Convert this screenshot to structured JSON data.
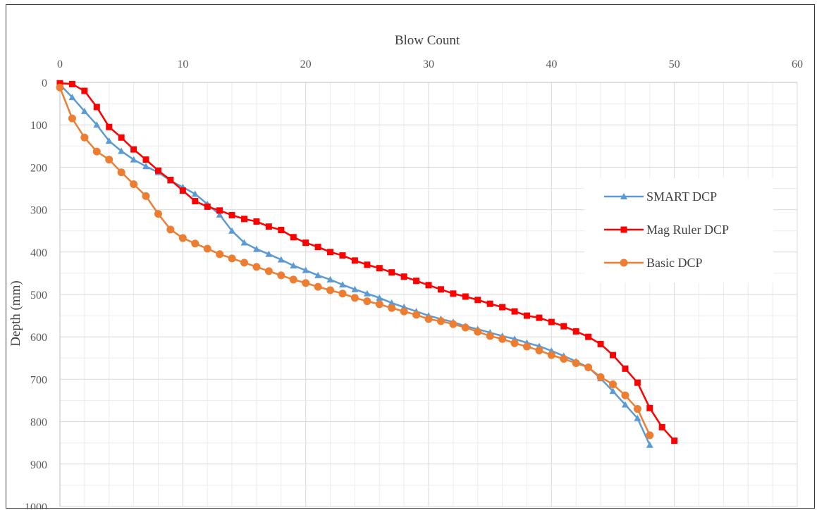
{
  "chart_data": {
    "type": "line",
    "title": "",
    "xlabel": "Blow Count",
    "ylabel": "Depth (mm)",
    "xlim": [
      0,
      60
    ],
    "ylim": [
      0,
      1000
    ],
    "y_inverted": true,
    "x_axis_position": "top",
    "x_ticks": [
      "0",
      "10",
      "20",
      "30",
      "40",
      "50",
      "60"
    ],
    "y_ticks": [
      "0",
      "100",
      "200",
      "300",
      "400",
      "500",
      "600",
      "700",
      "800",
      "900",
      "1000"
    ],
    "grid": true,
    "legend_position": "right",
    "series": [
      {
        "name": "SMART DCP",
        "color": "#5b9bd5",
        "marker": "triangle",
        "x": [
          0,
          1,
          2,
          3,
          4,
          5,
          6,
          7,
          8,
          9,
          10,
          11,
          12,
          13,
          14,
          15,
          16,
          17,
          18,
          19,
          20,
          21,
          22,
          23,
          24,
          25,
          26,
          27,
          28,
          29,
          30,
          31,
          32,
          33,
          34,
          35,
          36,
          37,
          38,
          39,
          40,
          41,
          42,
          43,
          44,
          45,
          46,
          47,
          48
        ],
        "y": [
          5,
          35,
          68,
          100,
          138,
          162,
          182,
          198,
          212,
          232,
          247,
          263,
          287,
          312,
          350,
          378,
          393,
          405,
          418,
          432,
          443,
          455,
          465,
          477,
          488,
          498,
          508,
          520,
          530,
          540,
          550,
          558,
          565,
          575,
          582,
          590,
          598,
          605,
          614,
          622,
          633,
          645,
          658,
          672,
          698,
          728,
          760,
          792,
          855
        ]
      },
      {
        "name": "Mag Ruler DCP",
        "color": "#ff0000",
        "marker": "square",
        "x": [
          0,
          1,
          2,
          3,
          4,
          5,
          6,
          7,
          8,
          9,
          10,
          11,
          12,
          13,
          14,
          15,
          16,
          17,
          18,
          19,
          20,
          21,
          22,
          23,
          24,
          25,
          26,
          27,
          28,
          29,
          30,
          31,
          32,
          33,
          34,
          35,
          36,
          37,
          38,
          39,
          40,
          41,
          42,
          43,
          44,
          45,
          46,
          47,
          48,
          49,
          50
        ],
        "y": [
          2,
          4,
          20,
          58,
          105,
          130,
          158,
          182,
          208,
          230,
          255,
          280,
          293,
          302,
          313,
          322,
          328,
          340,
          348,
          365,
          378,
          388,
          400,
          408,
          420,
          430,
          438,
          448,
          458,
          468,
          478,
          488,
          498,
          505,
          513,
          522,
          530,
          540,
          550,
          555,
          565,
          575,
          587,
          600,
          617,
          643,
          675,
          708,
          768,
          813,
          845
        ]
      },
      {
        "name": "Basic DCP",
        "color": "#ed7d31",
        "marker": "circle",
        "x": [
          0,
          1,
          2,
          3,
          4,
          5,
          6,
          7,
          8,
          9,
          10,
          11,
          12,
          13,
          14,
          15,
          16,
          17,
          18,
          19,
          20,
          21,
          22,
          23,
          24,
          25,
          26,
          27,
          28,
          29,
          30,
          31,
          32,
          33,
          34,
          35,
          36,
          37,
          38,
          39,
          40,
          41,
          42,
          43,
          44,
          45,
          46,
          47,
          48
        ],
        "y": [
          12,
          85,
          130,
          163,
          182,
          212,
          240,
          268,
          310,
          347,
          367,
          380,
          392,
          405,
          415,
          425,
          435,
          445,
          455,
          465,
          473,
          482,
          490,
          498,
          508,
          516,
          523,
          532,
          540,
          548,
          558,
          563,
          570,
          578,
          588,
          598,
          605,
          615,
          623,
          632,
          643,
          652,
          662,
          672,
          695,
          712,
          738,
          770,
          832
        ]
      }
    ]
  }
}
